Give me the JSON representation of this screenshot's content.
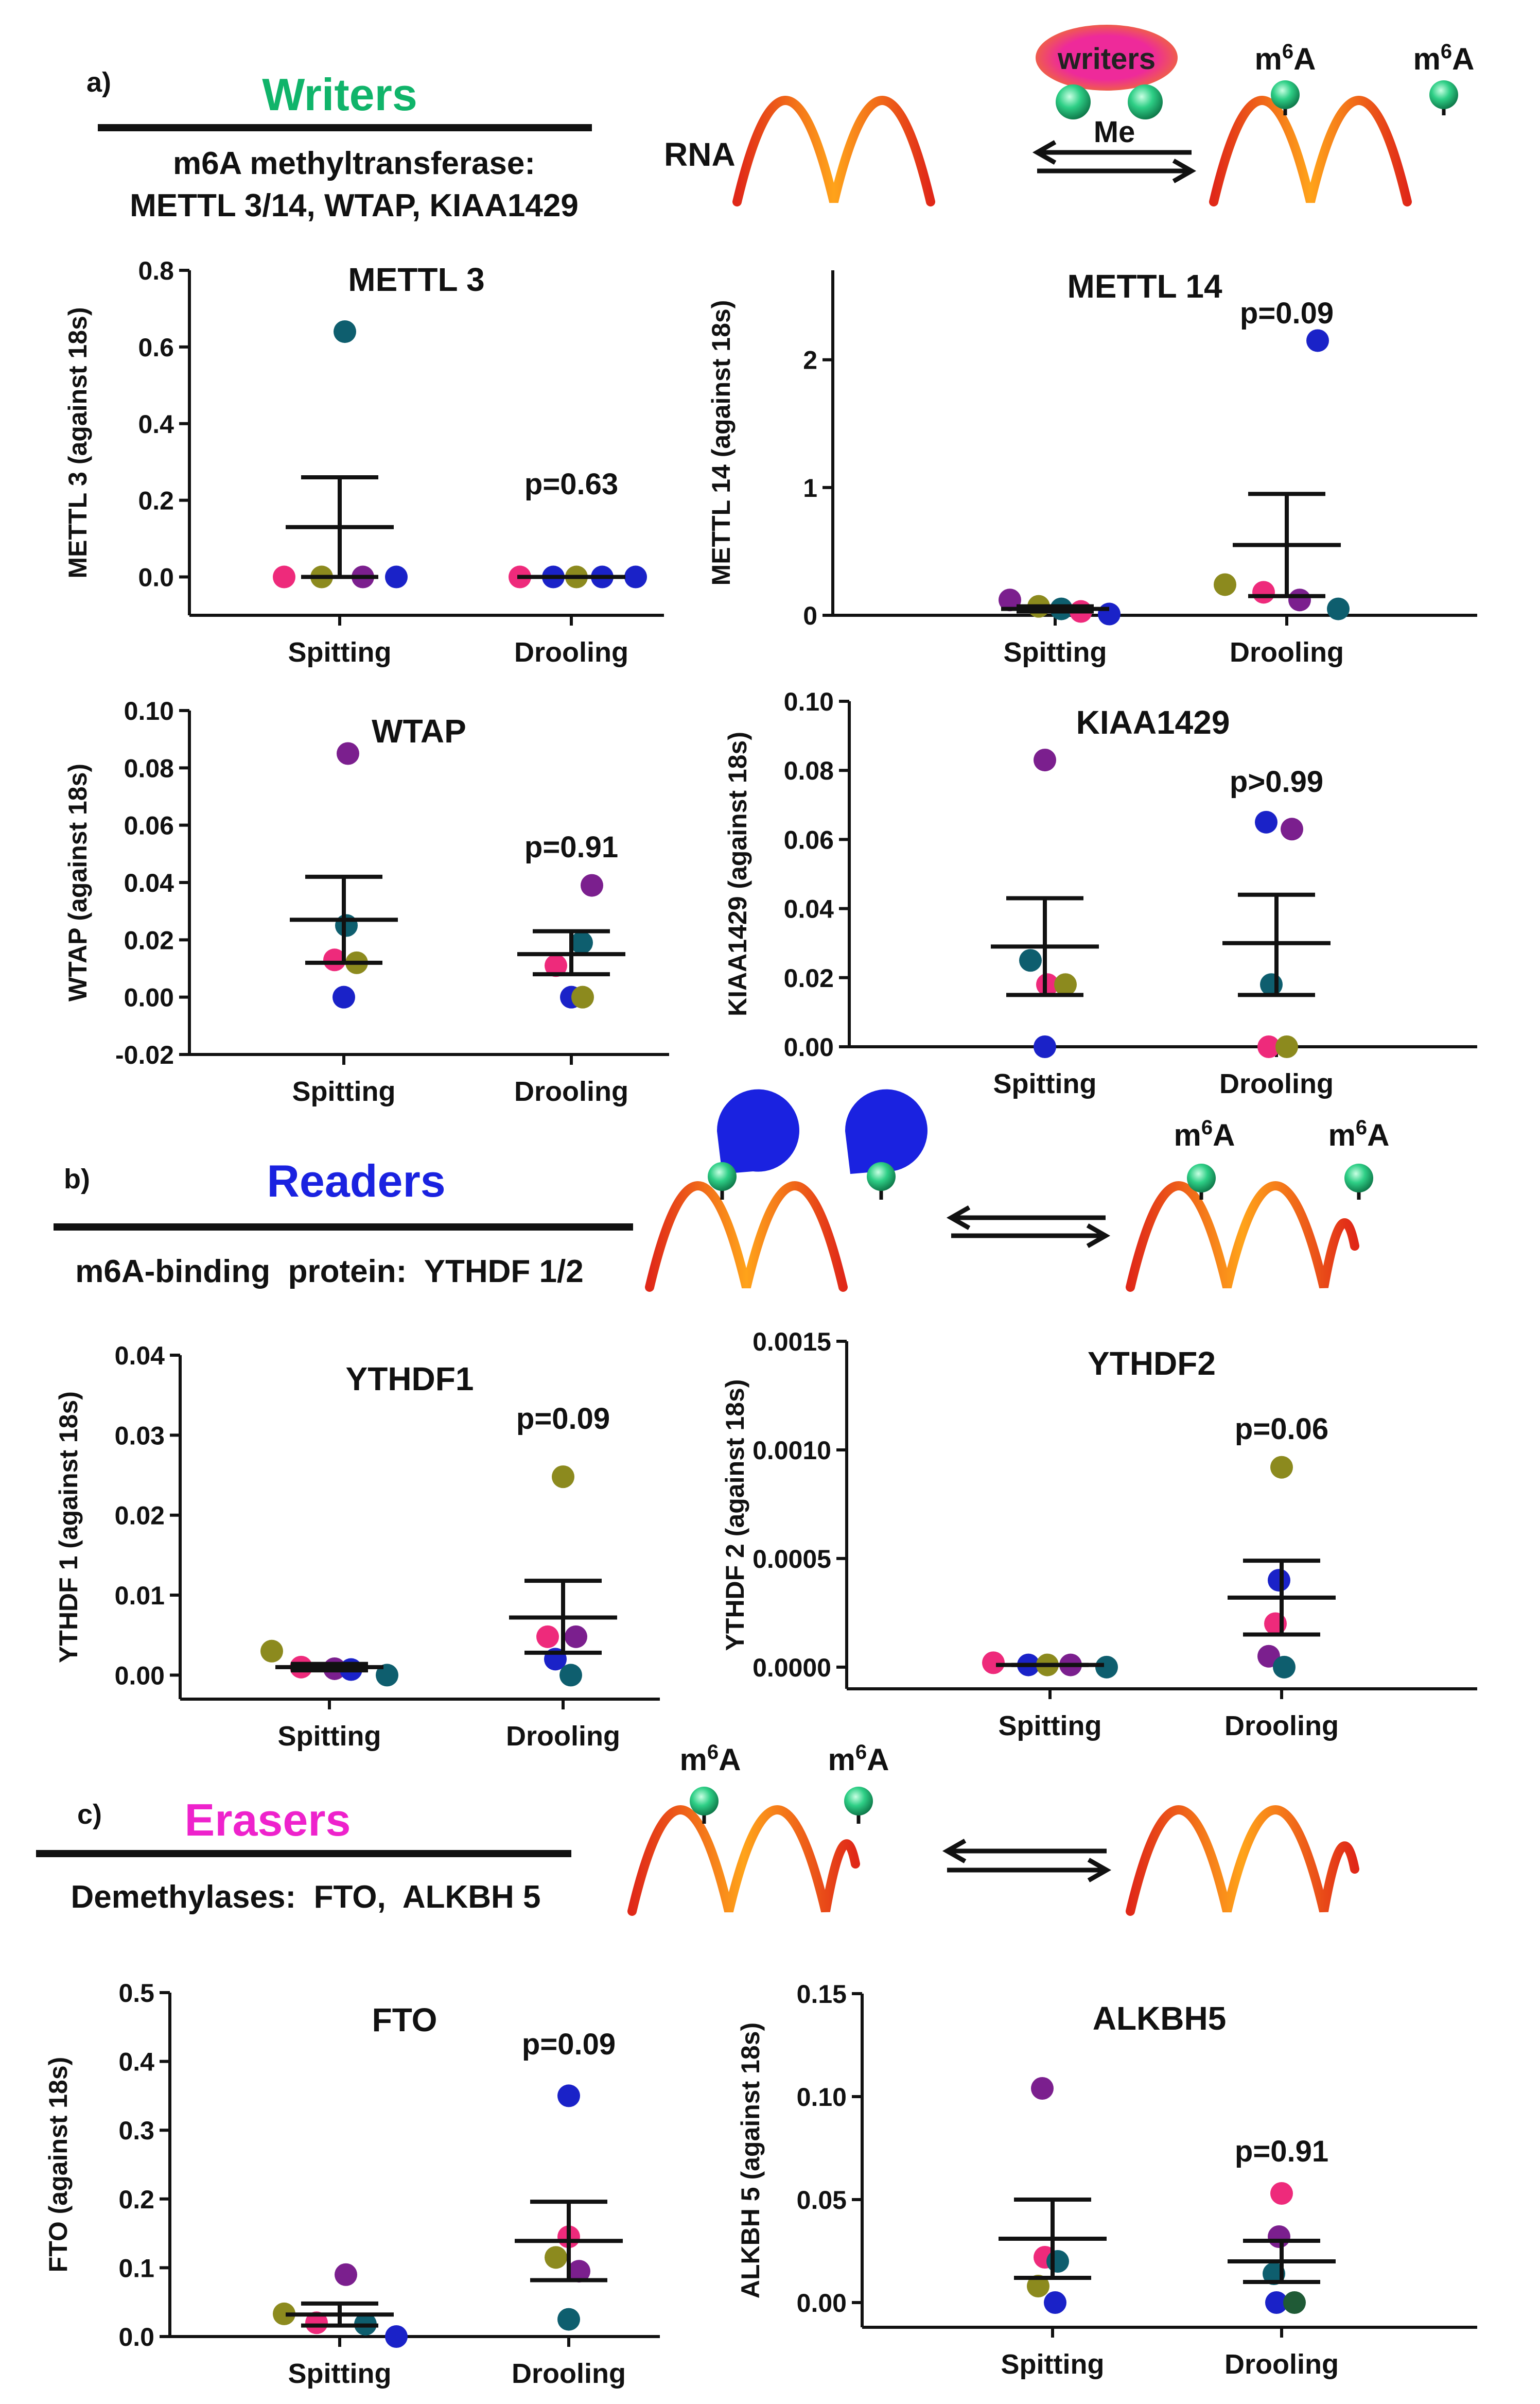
{
  "colors": {
    "magenta": "#ee2a7b",
    "olive": "#8c8a1e",
    "purple": "#7b1f8e",
    "blue": "#1a22c8",
    "teal": "#0e5e6e",
    "green": "#1f5a36",
    "writers": "#10b46a",
    "readers": "#1a22e0",
    "erasers": "#ee22cc",
    "rna": "#f25a0a",
    "m6a_ball": "#2ecf86",
    "reader_cap": "#1a22e0",
    "writer_oval": "#ee2a9a",
    "writer_halo": "#f07a20"
  },
  "sections": [
    {
      "letter": "a)",
      "title": "Writers",
      "title_color": "#10b46a",
      "subtitle_lines": [
        "m6A methyltransferase:",
        "METTL 3/14, WTAP, KIAA1429"
      ]
    },
    {
      "letter": "b)",
      "title": "Readers",
      "title_color": "#1a22e0",
      "subtitle_lines": [
        "m6A-binding  protein:  YTHDF 1/2"
      ]
    },
    {
      "letter": "c)",
      "title": "Erasers",
      "title_color": "#ee22cc",
      "subtitle_lines": [
        "Demethylases:  FTO,  ALKBH 5"
      ]
    }
  ],
  "schematic": {
    "rna_label": "RNA",
    "m6a_label": "m6A",
    "writer_label": "writers",
    "me_label": "Me"
  },
  "chart_data": [
    {
      "id": "mettl3",
      "type": "scatter",
      "title": "METTL 3",
      "ylabel": "METTL 3 (against 18s)",
      "categories": [
        "Spitting",
        "Drooling"
      ],
      "ylim": [
        -0.1,
        0.8
      ],
      "ticks": [
        0.0,
        0.2,
        0.4,
        0.6,
        0.8
      ],
      "tick_labels": [
        "0.0",
        "0.2",
        "0.4",
        "0.6",
        "0.8"
      ],
      "pvalue": "p=0.63",
      "groups": [
        {
          "name": "Spitting",
          "points": [
            {
              "y": 0.0,
              "c": "magenta"
            },
            {
              "y": 0.0,
              "c": "olive"
            },
            {
              "y": 0.64,
              "c": "teal"
            },
            {
              "y": 0.0,
              "c": "purple"
            },
            {
              "y": 0.0,
              "c": "blue"
            }
          ],
          "mean": 0.13,
          "sem_low": 0.0,
          "sem_high": 0.26
        },
        {
          "name": "Drooling",
          "points": [
            {
              "y": 0.0,
              "c": "magenta"
            },
            {
              "y": 0.0,
              "c": "blue"
            },
            {
              "y": 0.0,
              "c": "olive"
            },
            {
              "y": 0.0,
              "c": "blue"
            },
            {
              "y": 0.0,
              "c": "blue"
            }
          ],
          "mean": 0.0,
          "sem_low": 0.0,
          "sem_high": 0.0
        }
      ]
    },
    {
      "id": "mettl14",
      "type": "scatter",
      "title": "METTL 14",
      "ylabel": "METTL 14 (against 18s)",
      "categories": [
        "Spitting",
        "Drooling"
      ],
      "ylim": [
        0,
        2.7
      ],
      "ticks": [
        0,
        1,
        2
      ],
      "tick_labels": [
        "0",
        "1",
        "2"
      ],
      "pvalue": "p=0.09",
      "groups": [
        {
          "name": "Spitting",
          "points": [
            {
              "y": 0.12,
              "c": "purple"
            },
            {
              "y": 0.07,
              "c": "olive"
            },
            {
              "y": 0.05,
              "c": "teal"
            },
            {
              "y": 0.03,
              "c": "magenta"
            },
            {
              "y": 0.01,
              "c": "blue"
            }
          ],
          "mean": 0.05,
          "sem_low": 0.03,
          "sem_high": 0.07
        },
        {
          "name": "Drooling",
          "points": [
            {
              "y": 0.24,
              "c": "olive"
            },
            {
              "y": 0.18,
              "c": "magenta"
            },
            {
              "y": 2.15,
              "c": "blue"
            },
            {
              "y": 0.12,
              "c": "purple"
            },
            {
              "y": 0.05,
              "c": "teal"
            }
          ],
          "mean": 0.55,
          "sem_low": 0.15,
          "sem_high": 0.95
        }
      ]
    },
    {
      "id": "wtap",
      "type": "scatter",
      "title": "WTAP",
      "ylabel": "WTAP (against 18s)",
      "categories": [
        "Spitting",
        "Drooling"
      ],
      "ylim": [
        -0.02,
        0.1
      ],
      "ticks": [
        -0.02,
        0.0,
        0.02,
        0.04,
        0.06,
        0.08,
        0.1
      ],
      "tick_labels": [
        "-0.02",
        "0.00",
        "0.02",
        "0.04",
        "0.06",
        "0.08",
        "0.10"
      ],
      "pvalue": "p=0.91",
      "groups": [
        {
          "name": "Spitting",
          "points": [
            {
              "y": 0.013,
              "c": "magenta"
            },
            {
              "y": 0.0,
              "c": "blue"
            },
            {
              "y": 0.085,
              "c": "purple"
            },
            {
              "y": 0.025,
              "c": "teal"
            },
            {
              "y": 0.012,
              "c": "olive"
            }
          ],
          "mean": 0.027,
          "sem_low": 0.012,
          "sem_high": 0.042
        },
        {
          "name": "Drooling",
          "points": [
            {
              "y": 0.0,
              "c": "blue"
            },
            {
              "y": 0.011,
              "c": "magenta"
            },
            {
              "y": 0.039,
              "c": "purple"
            },
            {
              "y": 0.019,
              "c": "teal"
            },
            {
              "y": 0.0,
              "c": "olive"
            }
          ],
          "mean": 0.015,
          "sem_low": 0.008,
          "sem_high": 0.023
        }
      ]
    },
    {
      "id": "kiaa1429",
      "type": "scatter",
      "title": "KIAA1429",
      "ylabel": "KIAA1429 (against 18s)",
      "categories": [
        "Spitting",
        "Drooling"
      ],
      "ylim": [
        0,
        0.1
      ],
      "ticks": [
        0.0,
        0.02,
        0.04,
        0.06,
        0.08,
        0.1
      ],
      "tick_labels": [
        "0.00",
        "0.02",
        "0.04",
        "0.06",
        "0.08",
        "0.10"
      ],
      "pvalue": "p>0.99",
      "groups": [
        {
          "name": "Spitting",
          "points": [
            {
              "y": 0.025,
              "c": "teal"
            },
            {
              "y": 0.0,
              "c": "blue"
            },
            {
              "y": 0.083,
              "c": "purple"
            },
            {
              "y": 0.018,
              "c": "magenta"
            },
            {
              "y": 0.018,
              "c": "olive"
            }
          ],
          "mean": 0.029,
          "sem_low": 0.015,
          "sem_high": 0.043
        },
        {
          "name": "Drooling",
          "points": [
            {
              "y": 0.0,
              "c": "magenta"
            },
            {
              "y": 0.065,
              "c": "blue"
            },
            {
              "y": 0.018,
              "c": "teal"
            },
            {
              "y": 0.063,
              "c": "purple"
            },
            {
              "y": 0.0,
              "c": "olive"
            }
          ],
          "mean": 0.03,
          "sem_low": 0.015,
          "sem_high": 0.044
        }
      ]
    },
    {
      "id": "ythdf1",
      "type": "scatter",
      "title": "YTHDF1",
      "ylabel": "YTHDF 1 (against 18s)",
      "categories": [
        "Spitting",
        "Drooling"
      ],
      "ylim": [
        -0.003,
        0.04
      ],
      "ticks": [
        0.0,
        0.01,
        0.02,
        0.03,
        0.04
      ],
      "tick_labels": [
        "0.00",
        "0.01",
        "0.02",
        "0.03",
        "0.04"
      ],
      "pvalue": "p=0.09",
      "groups": [
        {
          "name": "Spitting",
          "points": [
            {
              "y": 0.003,
              "c": "olive"
            },
            {
              "y": 0.001,
              "c": "magenta"
            },
            {
              "y": 0.0008,
              "c": "purple"
            },
            {
              "y": 0.0007,
              "c": "blue"
            },
            {
              "y": 0.0,
              "c": "teal"
            }
          ],
          "mean": 0.001,
          "sem_low": 0.0006,
          "sem_high": 0.0014
        },
        {
          "name": "Drooling",
          "points": [
            {
              "y": 0.0048,
              "c": "magenta"
            },
            {
              "y": 0.0048,
              "c": "purple"
            },
            {
              "y": 0.0248,
              "c": "olive"
            },
            {
              "y": 0.002,
              "c": "blue"
            },
            {
              "y": 0.0,
              "c": "teal"
            }
          ],
          "mean": 0.0072,
          "sem_low": 0.0028,
          "sem_high": 0.0118
        }
      ]
    },
    {
      "id": "ythdf2",
      "type": "scatter",
      "title": "YTHDF2",
      "ylabel": "YTHDF 2 (against 18s)",
      "categories": [
        "Spitting",
        "Drooling"
      ],
      "ylim": [
        -0.0001,
        0.0015
      ],
      "ticks": [
        0.0,
        0.0005,
        0.001,
        0.0015
      ],
      "tick_labels": [
        "0.0000",
        "0.0005",
        "0.0010",
        "0.0015"
      ],
      "pvalue": "p=0.06",
      "groups": [
        {
          "name": "Spitting",
          "points": [
            {
              "y": 2e-05,
              "c": "magenta"
            },
            {
              "y": 1e-05,
              "c": "blue"
            },
            {
              "y": 1e-05,
              "c": "olive"
            },
            {
              "y": 1e-05,
              "c": "purple"
            },
            {
              "y": 0.0,
              "c": "teal"
            }
          ],
          "mean": 1e-05,
          "sem_low": 1e-05,
          "sem_high": 1e-05
        },
        {
          "name": "Drooling",
          "points": [
            {
              "y": 0.00092,
              "c": "olive"
            },
            {
              "y": 0.0004,
              "c": "blue"
            },
            {
              "y": 0.0002,
              "c": "magenta"
            },
            {
              "y": 5e-05,
              "c": "purple"
            },
            {
              "y": 0.0,
              "c": "teal"
            }
          ],
          "mean": 0.00032,
          "sem_low": 0.00015,
          "sem_high": 0.00049
        }
      ]
    },
    {
      "id": "fto",
      "type": "scatter",
      "title": "FTO",
      "ylabel": "FTO (against 18s)",
      "categories": [
        "Spitting",
        "Drooling"
      ],
      "ylim": [
        0,
        0.5
      ],
      "ticks": [
        0.0,
        0.1,
        0.2,
        0.3,
        0.4,
        0.5
      ],
      "tick_labels": [
        "0.0",
        "0.1",
        "0.2",
        "0.3",
        "0.4",
        "0.5"
      ],
      "pvalue": "p=0.09",
      "groups": [
        {
          "name": "Spitting",
          "points": [
            {
              "y": 0.033,
              "c": "olive"
            },
            {
              "y": 0.02,
              "c": "magenta"
            },
            {
              "y": 0.09,
              "c": "purple"
            },
            {
              "y": 0.018,
              "c": "teal"
            },
            {
              "y": 0.0,
              "c": "blue"
            }
          ],
          "mean": 0.032,
          "sem_low": 0.016,
          "sem_high": 0.048
        },
        {
          "name": "Drooling",
          "points": [
            {
              "y": 0.35,
              "c": "blue"
            },
            {
              "y": 0.145,
              "c": "magenta"
            },
            {
              "y": 0.095,
              "c": "purple"
            },
            {
              "y": 0.115,
              "c": "olive"
            },
            {
              "y": 0.025,
              "c": "teal"
            }
          ],
          "mean": 0.139,
          "sem_low": 0.082,
          "sem_high": 0.196
        }
      ]
    },
    {
      "id": "alkbh5",
      "type": "scatter",
      "title": "ALKBH5",
      "ylabel": "ALKBH 5 (against 18s)",
      "categories": [
        "Spitting",
        "Drooling"
      ],
      "ylim": [
        -0.012,
        0.15
      ],
      "ticks": [
        0.0,
        0.05,
        0.1,
        0.15
      ],
      "tick_labels": [
        "0.00",
        "0.05",
        "0.10",
        "0.15"
      ],
      "pvalue": "p=0.91",
      "groups": [
        {
          "name": "Spitting",
          "points": [
            {
              "y": 0.104,
              "c": "purple"
            },
            {
              "y": 0.022,
              "c": "magenta"
            },
            {
              "y": 0.02,
              "c": "teal"
            },
            {
              "y": 0.008,
              "c": "olive"
            },
            {
              "y": 0.0,
              "c": "blue"
            }
          ],
          "mean": 0.031,
          "sem_low": 0.012,
          "sem_high": 0.05
        },
        {
          "name": "Drooling",
          "points": [
            {
              "y": 0.053,
              "c": "magenta"
            },
            {
              "y": 0.032,
              "c": "purple"
            },
            {
              "y": 0.014,
              "c": "teal"
            },
            {
              "y": 0.0,
              "c": "blue"
            },
            {
              "y": 0.0,
              "c": "green"
            }
          ],
          "mean": 0.02,
          "sem_low": 0.01,
          "sem_high": 0.03
        }
      ]
    }
  ]
}
